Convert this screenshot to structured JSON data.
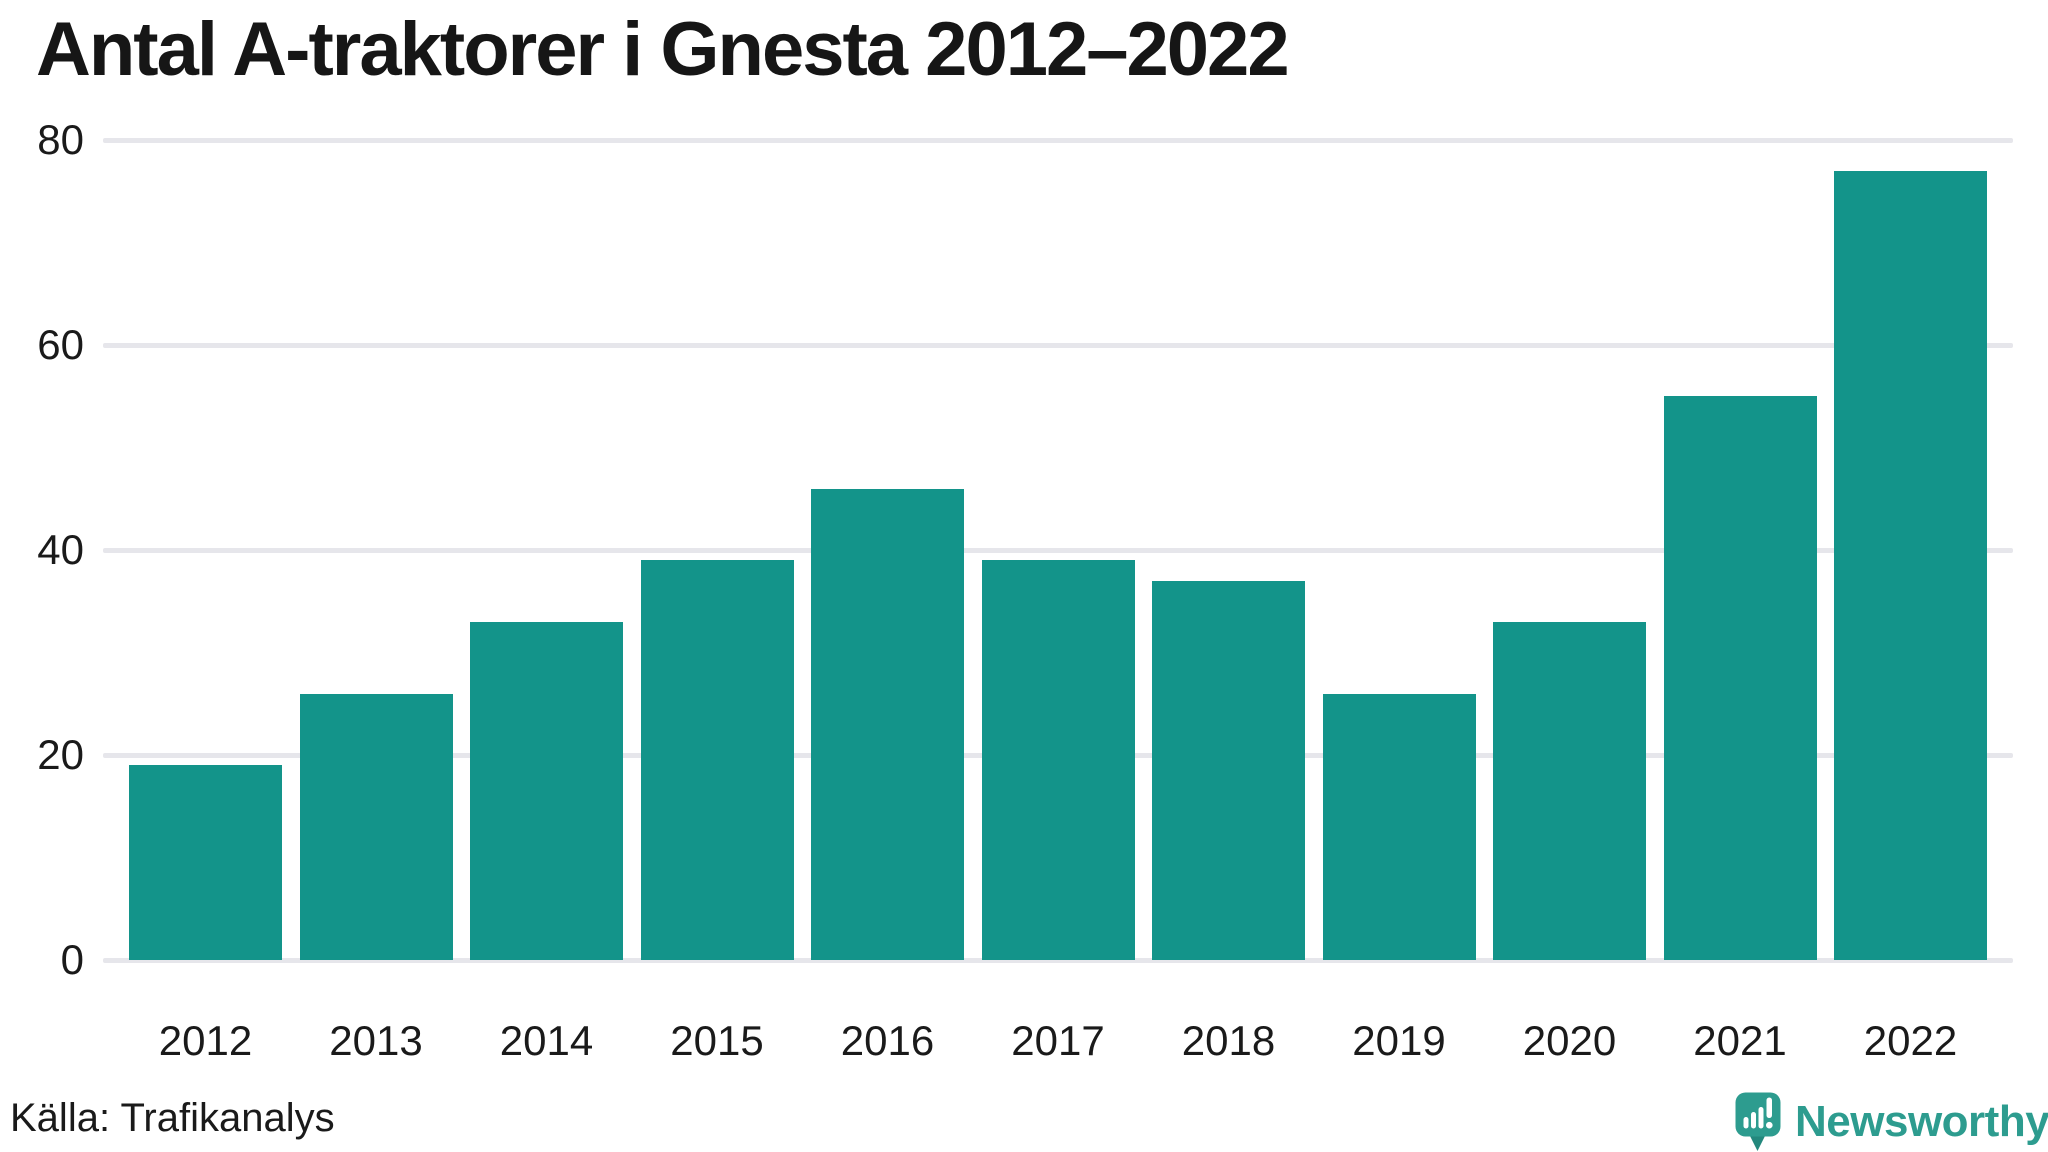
{
  "title": "Antal A-traktorer i Gnesta 2012–2022",
  "branding": {
    "wordmark": "Newsworthy",
    "icon": "newsworthy-logo-icon"
  },
  "colors": {
    "bar": "#13948A",
    "grid": "#E6E6EB",
    "text": "#1A1A1A",
    "brand_teal": "#2D9C8F",
    "brand_tail": "#23887D",
    "brand_mark_fill": "#FFFFFF"
  },
  "chart_data": {
    "type": "bar",
    "title": "Antal A-traktorer i Gnesta 2012–2022",
    "categories": [
      "2012",
      "2013",
      "2014",
      "2015",
      "2016",
      "2017",
      "2018",
      "2019",
      "2020",
      "2021",
      "2022"
    ],
    "values": [
      19,
      26,
      33,
      39,
      46,
      39,
      37,
      26,
      33,
      55,
      77
    ],
    "xlabel": "",
    "ylabel": "",
    "ylim": [
      0,
      80
    ],
    "yticks": [
      0,
      20,
      40,
      60,
      80
    ],
    "grid": true,
    "legend": false,
    "source": "Källa: Trafikanalys"
  }
}
